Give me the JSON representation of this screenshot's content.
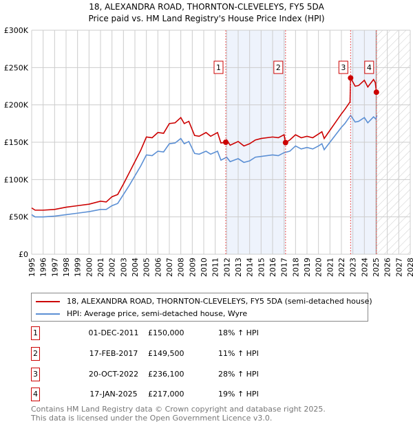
{
  "chart_data": {
    "type": "line",
    "title": "18, ALEXANDRA ROAD, THORNTON-CLEVELEYS, FY5 5DA",
    "subtitle": "Price paid vs. HM Land Registry's House Price Index (HPI)",
    "ylim": [
      0,
      300000
    ],
    "xlim": [
      1995,
      2028
    ],
    "y_ticks": [
      {
        "v": 0,
        "label": "£0"
      },
      {
        "v": 50000,
        "label": "£50K"
      },
      {
        "v": 100000,
        "label": "£100K"
      },
      {
        "v": 150000,
        "label": "£150K"
      },
      {
        "v": 200000,
        "label": "£200K"
      },
      {
        "v": 250000,
        "label": "£250K"
      },
      {
        "v": 300000,
        "label": "£300K"
      }
    ],
    "x_ticks": [
      "1995",
      "1996",
      "1997",
      "1998",
      "1999",
      "2000",
      "2001",
      "2002",
      "2003",
      "2004",
      "2005",
      "2006",
      "2007",
      "2008",
      "2009",
      "2010",
      "2011",
      "2012",
      "2013",
      "2014",
      "2015",
      "2016",
      "2017",
      "2018",
      "2019",
      "2020",
      "2021",
      "2022",
      "2023",
      "2024",
      "2025",
      "2026",
      "2027",
      "2028"
    ],
    "series": [
      {
        "name": "18, ALEXANDRA ROAD, THORNTON-CLEVELEYS, FY5 5DA (semi-detached house)",
        "color": "#cc0000",
        "x": [
          1995,
          1995.3,
          1996,
          1997,
          1998,
          1999,
          2000,
          2001,
          2001.5,
          2002,
          2002.5,
          2003,
          2003.5,
          2004,
          2004.5,
          2005,
          2005.5,
          2006,
          2006.5,
          2007,
          2007.5,
          2008,
          2008.3,
          2008.7,
          2009.2,
          2009.6,
          2010.2,
          2010.6,
          2011.2,
          2011.5,
          2011.92,
          2012,
          2012.3,
          2013,
          2013.5,
          2014,
          2014.5,
          2015,
          2016,
          2016.5,
          2017,
          2017.13,
          2017.5,
          2018,
          2018.5,
          2019,
          2019.5,
          2020,
          2020.3,
          2020.5,
          2021,
          2021.5,
          2022,
          2022.3,
          2022.75,
          2022.8,
          2023.2,
          2023.5,
          2024,
          2024.3,
          2024.8,
          2024.95,
          2025.05
        ],
        "y": [
          62000,
          59000,
          59000,
          60000,
          63000,
          65000,
          67000,
          71000,
          70000,
          77000,
          80000,
          94000,
          109000,
          124000,
          139000,
          157000,
          156000,
          163000,
          162000,
          175000,
          176000,
          183000,
          175000,
          178000,
          159000,
          158000,
          163000,
          158000,
          163000,
          149000,
          150000,
          153000,
          146000,
          151000,
          145000,
          148000,
          153000,
          155000,
          157000,
          156000,
          160000,
          149500,
          153000,
          160000,
          156000,
          158000,
          156000,
          161000,
          164000,
          155000,
          166000,
          177000,
          188000,
          194000,
          204000,
          236100,
          225000,
          226000,
          233000,
          224000,
          234000,
          230000,
          217000
        ]
      },
      {
        "name": "HPI: Average price, semi-detached house, Wyre",
        "color": "#5b8fd4",
        "x": [
          1995,
          1995.3,
          1996,
          1997,
          1998,
          1999,
          2000,
          2001,
          2001.5,
          2002,
          2002.5,
          2003,
          2003.5,
          2004,
          2004.5,
          2005,
          2005.5,
          2006,
          2006.5,
          2007,
          2007.5,
          2008,
          2008.3,
          2008.7,
          2009.2,
          2009.6,
          2010.2,
          2010.6,
          2011.2,
          2011.5,
          2012,
          2012.3,
          2013,
          2013.5,
          2014,
          2014.5,
          2015,
          2016,
          2016.5,
          2017,
          2017.5,
          2018,
          2018.5,
          2019,
          2019.5,
          2020,
          2020.3,
          2020.5,
          2021,
          2021.5,
          2022,
          2022.3,
          2022.8,
          2023.2,
          2023.5,
          2024,
          2024.3,
          2024.8,
          2025,
          2025.1
        ],
        "y": [
          53000,
          50000,
          50000,
          51000,
          53000,
          55000,
          57000,
          60000,
          60000,
          65000,
          68000,
          80000,
          92000,
          105000,
          118000,
          133000,
          132000,
          138000,
          137000,
          148000,
          149000,
          155000,
          148000,
          151000,
          135000,
          134000,
          138000,
          134000,
          138000,
          126000,
          130000,
          124000,
          128000,
          123000,
          125000,
          130000,
          131000,
          133000,
          132000,
          136000,
          138000,
          145000,
          141000,
          143000,
          141000,
          145000,
          148000,
          140000,
          150000,
          160000,
          170000,
          175000,
          186000,
          177000,
          178000,
          183000,
          176000,
          184000,
          181000,
          186000
        ]
      }
    ],
    "sales": [
      {
        "n": "1",
        "x": 2011.92,
        "date": "01-DEC-2011",
        "price": "£150,000",
        "price_v": 150000,
        "hpi": "18% ↑ HPI"
      },
      {
        "n": "2",
        "x": 2017.13,
        "date": "17-FEB-2017",
        "price": "£149,500",
        "price_v": 149500,
        "hpi": "11% ↑ HPI"
      },
      {
        "n": "3",
        "x": 2022.8,
        "date": "20-OCT-2022",
        "price": "£236,100",
        "price_v": 236100,
        "hpi": "28% ↑ HPI"
      },
      {
        "n": "4",
        "x": 2025.05,
        "date": "17-JAN-2025",
        "price": "£217,000",
        "price_v": 217000,
        "hpi": "19% ↑ HPI"
      }
    ],
    "shaded_ranges": [
      [
        2011.92,
        2017.13
      ],
      [
        2022.8,
        2025.05
      ]
    ],
    "forecast_from": 2025.05
  },
  "legend": {
    "red": "18, ALEXANDRA ROAD, THORNTON-CLEVELEYS, FY5 5DA (semi-detached house)",
    "blue": "HPI: Average price, semi-detached house, Wyre"
  },
  "footer": {
    "line1": "Contains HM Land Registry data © Crown copyright and database right 2025.",
    "line2": "This data is licensed under the Open Government Licence v3.0."
  }
}
